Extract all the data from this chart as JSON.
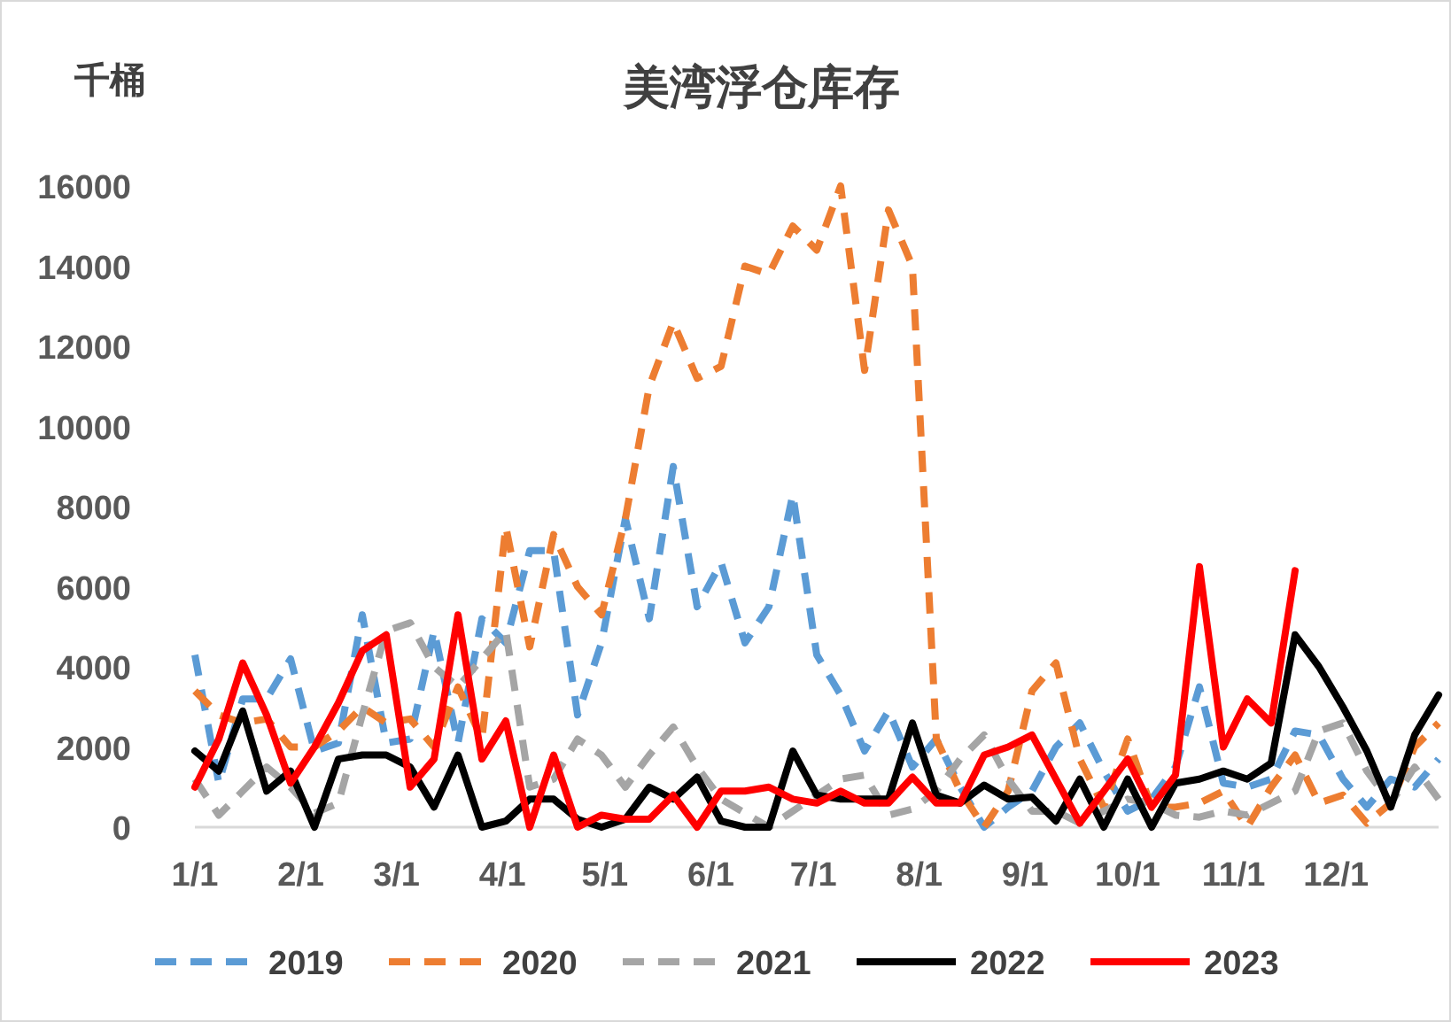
{
  "chart_data": {
    "type": "line",
    "title": "美湾浮仓库存",
    "ylabel": "千桶",
    "x": [
      "--01-01",
      "--01-08",
      "--01-15",
      "--01-22",
      "--01-29",
      "--02-05",
      "--02-12",
      "--02-19",
      "--02-26",
      "--03-05",
      "--03-12",
      "--03-19",
      "--03-26",
      "--04-02",
      "--04-09",
      "--04-16",
      "--04-23",
      "--04-30",
      "--05-07",
      "--05-14",
      "--05-21",
      "--05-28",
      "--06-04",
      "--06-11",
      "--06-18",
      "--06-25",
      "--07-02",
      "--07-09",
      "--07-16",
      "--07-23",
      "--07-30",
      "--08-06",
      "--08-13",
      "--08-20",
      "--08-27",
      "--09-03",
      "--09-10",
      "--09-17",
      "--09-24",
      "--10-01",
      "--10-08",
      "--10-15",
      "--10-22",
      "--10-29",
      "--11-05",
      "--11-12",
      "--11-19",
      "--11-26",
      "--12-03",
      "--12-10",
      "--12-17",
      "--12-24",
      "--12-31"
    ],
    "xlim": [
      "--01-01",
      "--12-31"
    ],
    "xticks": [
      {
        "value": "--01-01",
        "label": "1/1"
      },
      {
        "value": "--02-01",
        "label": "2/1"
      },
      {
        "value": "--03-01",
        "label": "3/1"
      },
      {
        "value": "--04-01",
        "label": "4/1"
      },
      {
        "value": "--05-01",
        "label": "5/1"
      },
      {
        "value": "--06-01",
        "label": "6/1"
      },
      {
        "value": "--07-01",
        "label": "7/1"
      },
      {
        "value": "--08-01",
        "label": "8/1"
      },
      {
        "value": "--09-01",
        "label": "9/1"
      },
      {
        "value": "--10-01",
        "label": "10/1"
      },
      {
        "value": "--11-01",
        "label": "11/1"
      },
      {
        "value": "--12-01",
        "label": "12/1"
      }
    ],
    "ylim": [
      0,
      16000
    ],
    "yticks": [
      0,
      2000,
      4000,
      6000,
      8000,
      10000,
      12000,
      14000,
      16000
    ],
    "grid": false,
    "legend": "bottom",
    "marker": "none",
    "series": [
      {
        "name": "2019",
        "color": "#5b9bd5",
        "line_style": "dashed",
        "values": [
          4300,
          1100,
          3200,
          3200,
          4200,
          1900,
          2100,
          5300,
          2100,
          2200,
          4900,
          2100,
          5200,
          4600,
          6900,
          6900,
          2800,
          4600,
          7700,
          5200,
          9000,
          5500,
          6600,
          4600,
          5500,
          8300,
          4300,
          3300,
          1900,
          2900,
          1500,
          2200,
          1000,
          0,
          500,
          900,
          2000,
          2600,
          1400,
          400,
          700,
          1500,
          3500,
          1100,
          1000,
          1200,
          2400,
          2300,
          1200,
          500,
          1200,
          1000,
          1700
        ]
      },
      {
        "name": "2020",
        "color": "#ed7d31",
        "line_style": "dashed",
        "values": [
          3400,
          2800,
          2600,
          2700,
          2000,
          2000,
          2400,
          3000,
          2600,
          2700,
          2000,
          3500,
          2200,
          7500,
          4500,
          7300,
          6000,
          5300,
          7700,
          11000,
          12600,
          11200,
          11500,
          14000,
          13800,
          15000,
          14400,
          16000,
          11400,
          15400,
          14000,
          2200,
          900,
          0,
          900,
          3400,
          4100,
          1700,
          500,
          2200,
          500,
          500,
          600,
          900,
          0,
          1000,
          1800,
          600,
          800,
          100,
          600,
          2000,
          2600
        ]
      },
      {
        "name": "2021",
        "color": "#a5a5a5",
        "line_style": "dashed",
        "values": [
          1200,
          300,
          900,
          1500,
          1000,
          350,
          600,
          2800,
          4900,
          5100,
          4000,
          3500,
          4200,
          4900,
          1000,
          1200,
          2200,
          1800,
          1000,
          1800,
          2500,
          1500,
          700,
          350,
          0,
          400,
          800,
          1200,
          1300,
          300,
          450,
          900,
          1700,
          2300,
          1200,
          400,
          400,
          100,
          400,
          700,
          600,
          300,
          250,
          400,
          300,
          600,
          900,
          2400,
          2600,
          1400,
          600,
          1500,
          700
        ]
      },
      {
        "name": "2022",
        "color": "#000000",
        "line_style": "solid",
        "values": [
          1900,
          1400,
          2900,
          900,
          1400,
          0,
          1700,
          1800,
          1800,
          1500,
          500,
          1800,
          0,
          150,
          700,
          700,
          200,
          0,
          200,
          1000,
          700,
          1250,
          150,
          0,
          0,
          1900,
          800,
          700,
          700,
          700,
          2600,
          800,
          600,
          1050,
          700,
          750,
          150,
          1200,
          0,
          1200,
          0,
          1100,
          1200,
          1400,
          1200,
          1600,
          4800,
          4000,
          3000,
          1900,
          500,
          2300,
          3300
        ]
      },
      {
        "name": "2023",
        "color": "#ff0000",
        "line_style": "solid",
        "values": [
          1000,
          2200,
          4100,
          2800,
          1100,
          2000,
          3100,
          4400,
          4800,
          1000,
          1700,
          5300,
          1700,
          2650,
          0,
          1800,
          0,
          300,
          200,
          200,
          800,
          0,
          900,
          900,
          1000,
          700,
          600,
          900,
          600,
          600,
          1250,
          600,
          600,
          1800,
          2000,
          2300,
          1200,
          100,
          900,
          1700,
          500,
          1300,
          6500,
          2000,
          3200,
          2600,
          6400,
          null,
          null,
          null,
          null,
          null,
          null
        ]
      }
    ]
  }
}
